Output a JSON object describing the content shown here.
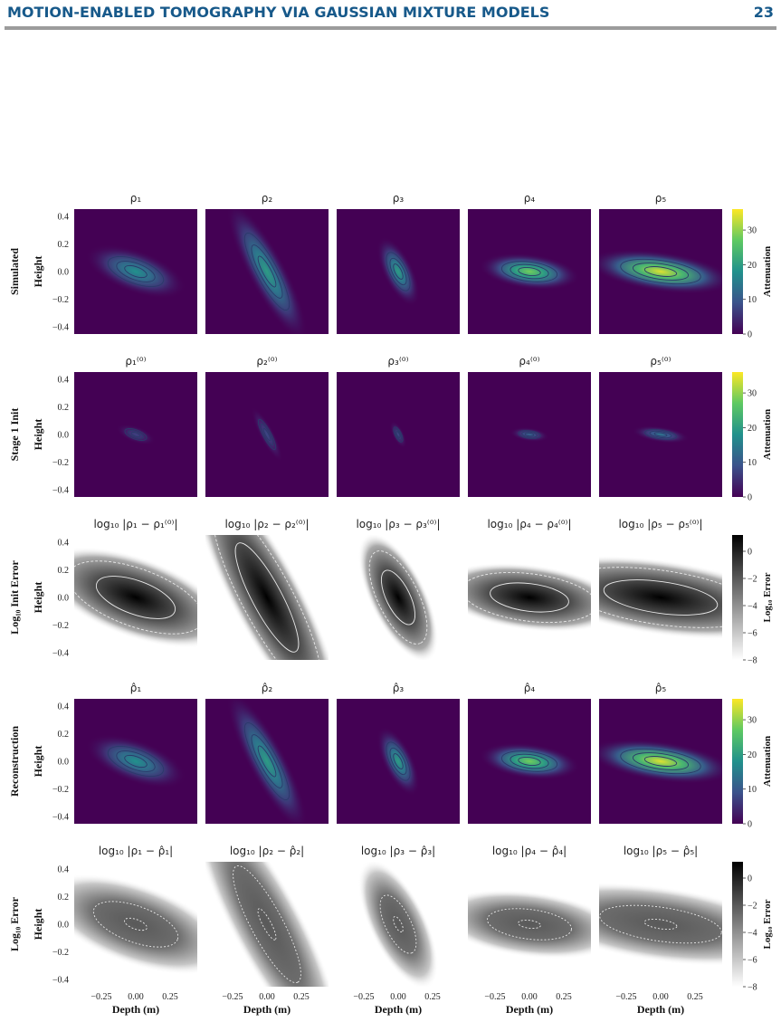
{
  "header": {
    "title": "MOTION-ENABLED TOMOGRAPHY VIA GAUSSIAN MIXTURE MODELS",
    "page": "23"
  },
  "figure": {
    "rows": [
      {
        "label": "Simulated",
        "cmap": "viridis",
        "ylabel": "Height",
        "yticks": [
          "0.4",
          "0.2",
          "0.0",
          "−0.2",
          "−0.4"
        ],
        "titles": [
          "ρ₁",
          "ρ₂",
          "ρ₃",
          "ρ₄",
          "ρ₅"
        ],
        "colorbar": {
          "label": "Attenuation",
          "ticks": [
            "0",
            "10",
            "20",
            "30"
          ]
        }
      },
      {
        "label": "Stage 1 Init",
        "cmap": "viridis",
        "ylabel": "Height",
        "yticks": [
          "0.4",
          "0.2",
          "0.0",
          "−0.2",
          "−0.4"
        ],
        "titles": [
          "ρ₁⁽⁰⁾",
          "ρ₂⁽⁰⁾",
          "ρ₃⁽⁰⁾",
          "ρ₄⁽⁰⁾",
          "ρ₅⁽⁰⁾"
        ],
        "colorbar": {
          "label": "Attenuation",
          "ticks": [
            "0",
            "10",
            "20",
            "30"
          ]
        }
      },
      {
        "label": "Log₁₀ Init Error",
        "cmap": "gray",
        "ylabel": "Height",
        "yticks": [
          "0.4",
          "0.2",
          "0.0",
          "−0.2",
          "−0.4"
        ],
        "titles": [
          "log₁₀ |ρ₁ − ρ₁⁽⁰⁾|",
          "log₁₀ |ρ₂ − ρ₂⁽⁰⁾|",
          "log₁₀ |ρ₃ − ρ₃⁽⁰⁾|",
          "log₁₀ |ρ₄ − ρ₄⁽⁰⁾|",
          "log₁₀ |ρ₅ − ρ₅⁽⁰⁾|"
        ],
        "colorbar": {
          "label": "Log₁₀ Error",
          "ticks": [
            "0",
            "−2",
            "−4",
            "−6",
            "−8"
          ]
        }
      },
      {
        "label": "Reconstruction",
        "cmap": "viridis",
        "ylabel": "Height",
        "yticks": [
          "0.4",
          "0.2",
          "0.0",
          "−0.2",
          "−0.4"
        ],
        "titles": [
          "ρ̂₁",
          "ρ̂₂",
          "ρ̂₃",
          "ρ̂₄",
          "ρ̂₅"
        ],
        "colorbar": {
          "label": "Attenuation",
          "ticks": [
            "0",
            "10",
            "20",
            "30"
          ]
        }
      },
      {
        "label": "Log₁₀ Error",
        "cmap": "gray",
        "ylabel": "Height",
        "yticks": [
          "0.4",
          "0.2",
          "0.0",
          "−0.2",
          "−0.4"
        ],
        "titles": [
          "log₁₀ |ρ₁ − ρ̂₁|",
          "log₁₀ |ρ₂ − ρ̂₂|",
          "log₁₀ |ρ₃ − ρ̂₃|",
          "log₁₀ |ρ₄ − ρ̂₄|",
          "log₁₀ |ρ₅ − ρ̂₅|"
        ],
        "colorbar": {
          "label": "Log₁₀ Error",
          "ticks": [
            "0",
            "−2",
            "−4",
            "−6",
            "−8"
          ]
        }
      }
    ],
    "x_axes": [
      {
        "label": "Depth (m)",
        "ticks": [
          "−0.25",
          "0.00",
          "0.25"
        ]
      },
      {
        "label": "Depth (m)",
        "ticks": [
          "−0.25",
          "0.00",
          "0.25"
        ]
      },
      {
        "label": "Depth (m)",
        "ticks": [
          "−0.25",
          "0.00",
          "0.25"
        ]
      },
      {
        "label": "Depth (m)",
        "ticks": [
          "−0.25",
          "0.00",
          "0.25"
        ]
      },
      {
        "label": "Depth (m)",
        "ticks": [
          "−0.25",
          "0.00",
          "0.25"
        ]
      }
    ]
  }
}
